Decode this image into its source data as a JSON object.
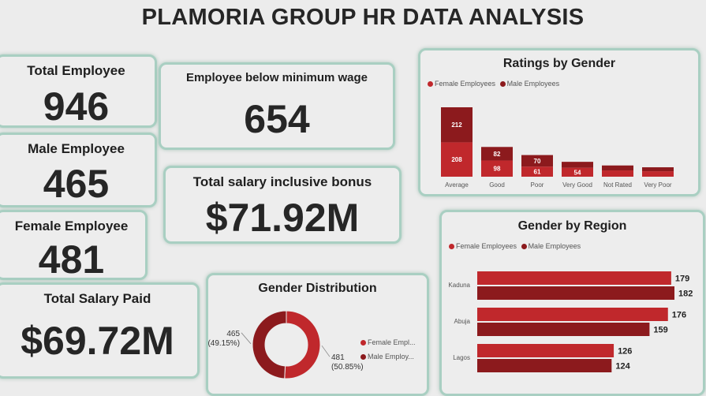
{
  "dashboard": {
    "title": "PLAMORIA GROUP HR DATA ANALYSIS"
  },
  "kpis": {
    "total_employee": {
      "label": "Total Employee",
      "value": "946"
    },
    "male_employee": {
      "label": "Male Employee",
      "value": "465"
    },
    "female_employee": {
      "label": "Female Employee",
      "value": "481"
    },
    "below_min_wage": {
      "label": "Employee below minimum wage",
      "value": "654"
    },
    "salary_incl_bonus": {
      "label": "Total salary inclusive bonus",
      "value": "$71.92M"
    },
    "salary_paid": {
      "label": "Total Salary Paid",
      "value": "$69.72M"
    }
  },
  "colors": {
    "female": "#c0282c",
    "male": "#8c1a1d",
    "border": "#a9cfc2"
  },
  "chart_data": [
    {
      "id": "ratings",
      "type": "bar",
      "stacked": true,
      "title": "Ratings by Gender",
      "legend_position": "top-left",
      "categories": [
        "Average",
        "Good",
        "Poor",
        "Very Good",
        "Not Rated",
        "Very Poor"
      ],
      "series": [
        {
          "name": "Female Employees",
          "values": [
            208,
            98,
            61,
            54,
            38,
            33
          ]
        },
        {
          "name": "Male Employees",
          "values": [
            212,
            82,
            70,
            36,
            30,
            24
          ]
        }
      ],
      "data_labels": [
        [
          "208",
          "98",
          "61",
          "54",
          "",
          ""
        ],
        [
          "212",
          "82",
          "70",
          "",
          "",
          ""
        ]
      ]
    },
    {
      "id": "gender",
      "type": "pie",
      "donut": true,
      "title": "Gender Distribution",
      "legend_position": "right",
      "slices": [
        {
          "name": "Female Employees",
          "legend_label": "Female Empl...",
          "value": 481,
          "label_value": "481",
          "label_pct": "(50.85%)"
        },
        {
          "name": "Male Employees",
          "legend_label": "Male Employ...",
          "value": 465,
          "label_value": "465",
          "label_pct": "(49.15%)"
        }
      ]
    },
    {
      "id": "region",
      "type": "bar",
      "orientation": "horizontal",
      "title": "Gender by Region",
      "legend_position": "top-left",
      "categories": [
        "Kaduna",
        "Abuja",
        "Lagos"
      ],
      "series": [
        {
          "name": "Female Employees",
          "values": [
            179,
            176,
            126
          ]
        },
        {
          "name": "Male Employees",
          "values": [
            182,
            159,
            124
          ]
        }
      ]
    }
  ]
}
